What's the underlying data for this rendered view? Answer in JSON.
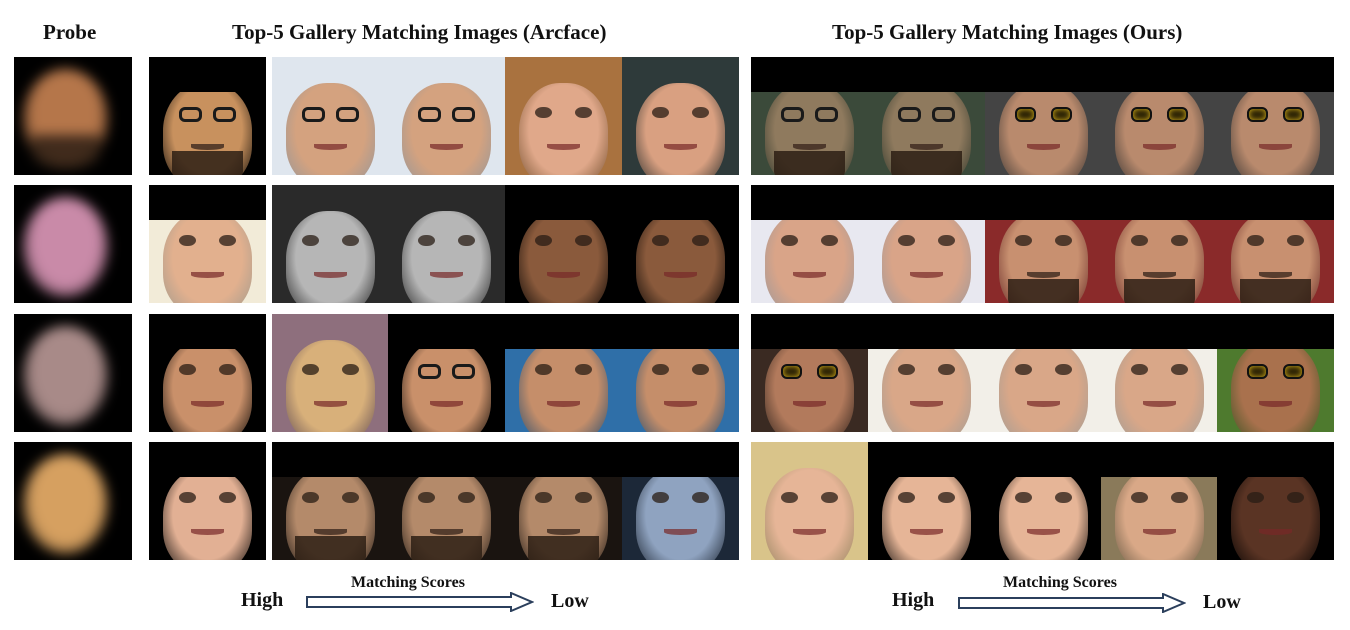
{
  "titles": {
    "probe": "Probe",
    "arcface": "Top-5 Gallery Matching Images (Arcface)",
    "ours": "Top-5 Gallery Matching Images (Ours)"
  },
  "legend": {
    "high": "High",
    "low": "Low",
    "caption": "Matching Scores"
  },
  "rows": [
    {
      "probe": {
        "skin": "#b5764a",
        "bg": "#000000",
        "style": "beard"
      },
      "arcface": [
        {
          "skin": "#c8915e",
          "bg": "#000000",
          "style": "glasses beard",
          "hat": true
        },
        {
          "skin": "#d4a27f",
          "bg": "#dfe6ee",
          "style": "glasses"
        },
        {
          "skin": "#d4a27f",
          "bg": "#dfe6ee",
          "style": "glasses"
        },
        {
          "skin": "#e0a88a",
          "bg": "#a9723f",
          "style": "plain"
        },
        {
          "skin": "#d9a081",
          "bg": "#2e3a3a",
          "style": "plain"
        }
      ],
      "ours": [
        {
          "skin": "#8f7a5e",
          "bg": "#3b4a3a",
          "style": "glasses beard",
          "hat": true
        },
        {
          "skin": "#8f7a5e",
          "bg": "#3b4a3a",
          "style": "glasses beard",
          "hat": true
        },
        {
          "skin": "#b98a6d",
          "bg": "#444444",
          "style": "sunglasses",
          "hat": true
        },
        {
          "skin": "#b98a6d",
          "bg": "#444444",
          "style": "sunglasses",
          "hat": true
        },
        {
          "skin": "#b98a6d",
          "bg": "#444444",
          "style": "sunglasses",
          "hat": true
        }
      ]
    },
    {
      "probe": {
        "skin": "#c98aa8",
        "bg": "#000000",
        "style": "plain"
      },
      "arcface": [
        {
          "skin": "#e2b08e",
          "bg": "#f2ebd8",
          "style": "plain",
          "hat": true
        },
        {
          "skin": "#b6b6b6",
          "bg": "#2a2a2a",
          "style": "plain"
        },
        {
          "skin": "#b6b6b6",
          "bg": "#2a2a2a",
          "style": "plain"
        },
        {
          "skin": "#8a5a3c",
          "bg": "#000000",
          "style": "plain",
          "hat": true
        },
        {
          "skin": "#8a5a3c",
          "bg": "#000000",
          "style": "plain",
          "hat": true
        }
      ],
      "ours": [
        {
          "skin": "#d9a488",
          "bg": "#e8e8f0",
          "style": "plain",
          "hat": true
        },
        {
          "skin": "#d9a488",
          "bg": "#e8e8f0",
          "style": "plain",
          "hat": true
        },
        {
          "skin": "#c89070",
          "bg": "#8a2a2a",
          "style": "beard",
          "hat": true
        },
        {
          "skin": "#c89070",
          "bg": "#8a2a2a",
          "style": "beard",
          "hat": true
        },
        {
          "skin": "#c89070",
          "bg": "#8a2a2a",
          "style": "beard",
          "hat": true
        }
      ]
    },
    {
      "probe": {
        "skin": "#a88a88",
        "bg": "#000000",
        "style": "plain"
      },
      "arcface": [
        {
          "skin": "#c9906a",
          "bg": "#000000",
          "style": "plain",
          "hat": true
        },
        {
          "skin": "#d8b07a",
          "bg": "#8e6f7d",
          "style": "plain"
        },
        {
          "skin": "#c9906a",
          "bg": "#000000",
          "style": "glasses",
          "hat": true
        },
        {
          "skin": "#c58e6a",
          "bg": "#2f6fa8",
          "style": "plain",
          "hat": true
        },
        {
          "skin": "#c58e6a",
          "bg": "#2f6fa8",
          "style": "plain",
          "hat": true
        }
      ],
      "ours": [
        {
          "skin": "#b27a5c",
          "bg": "#3a2a22",
          "style": "sunglasses",
          "hat": true
        },
        {
          "skin": "#d9a788",
          "bg": "#f2efe8",
          "style": "plain",
          "hat": true
        },
        {
          "skin": "#d9a788",
          "bg": "#f2efe8",
          "style": "plain",
          "hat": true
        },
        {
          "skin": "#d9a788",
          "bg": "#f2efe8",
          "style": "plain",
          "hat": true
        },
        {
          "skin": "#a9714d",
          "bg": "#4e7a2e",
          "style": "sunglasses",
          "hat": true
        }
      ]
    },
    {
      "probe": {
        "skin": "#d6a060",
        "bg": "#000000",
        "style": "plain"
      },
      "arcface": [
        {
          "skin": "#e2b094",
          "bg": "#000000",
          "style": "plain",
          "hat": true
        },
        {
          "skin": "#b48a6a",
          "bg": "#1a1410",
          "style": "beard",
          "hat": true
        },
        {
          "skin": "#b48a6a",
          "bg": "#1a1410",
          "style": "beard",
          "hat": true
        },
        {
          "skin": "#b48a6a",
          "bg": "#1a1410",
          "style": "beard",
          "hat": true
        },
        {
          "skin": "#8fa3c0",
          "bg": "#1c2838",
          "style": "plain",
          "hat": true
        }
      ],
      "ours": [
        {
          "skin": "#e6b597",
          "bg": "#d9c48a",
          "style": "plain"
        },
        {
          "skin": "#e6b597",
          "bg": "#000000",
          "style": "plain",
          "hat": true
        },
        {
          "skin": "#e6b597",
          "bg": "#000000",
          "style": "plain",
          "hat": true
        },
        {
          "skin": "#d9a887",
          "bg": "#8a7a5a",
          "style": "plain",
          "hat": true
        },
        {
          "skin": "#5a3424",
          "bg": "#000000",
          "style": "plain",
          "hat": true
        }
      ]
    }
  ]
}
